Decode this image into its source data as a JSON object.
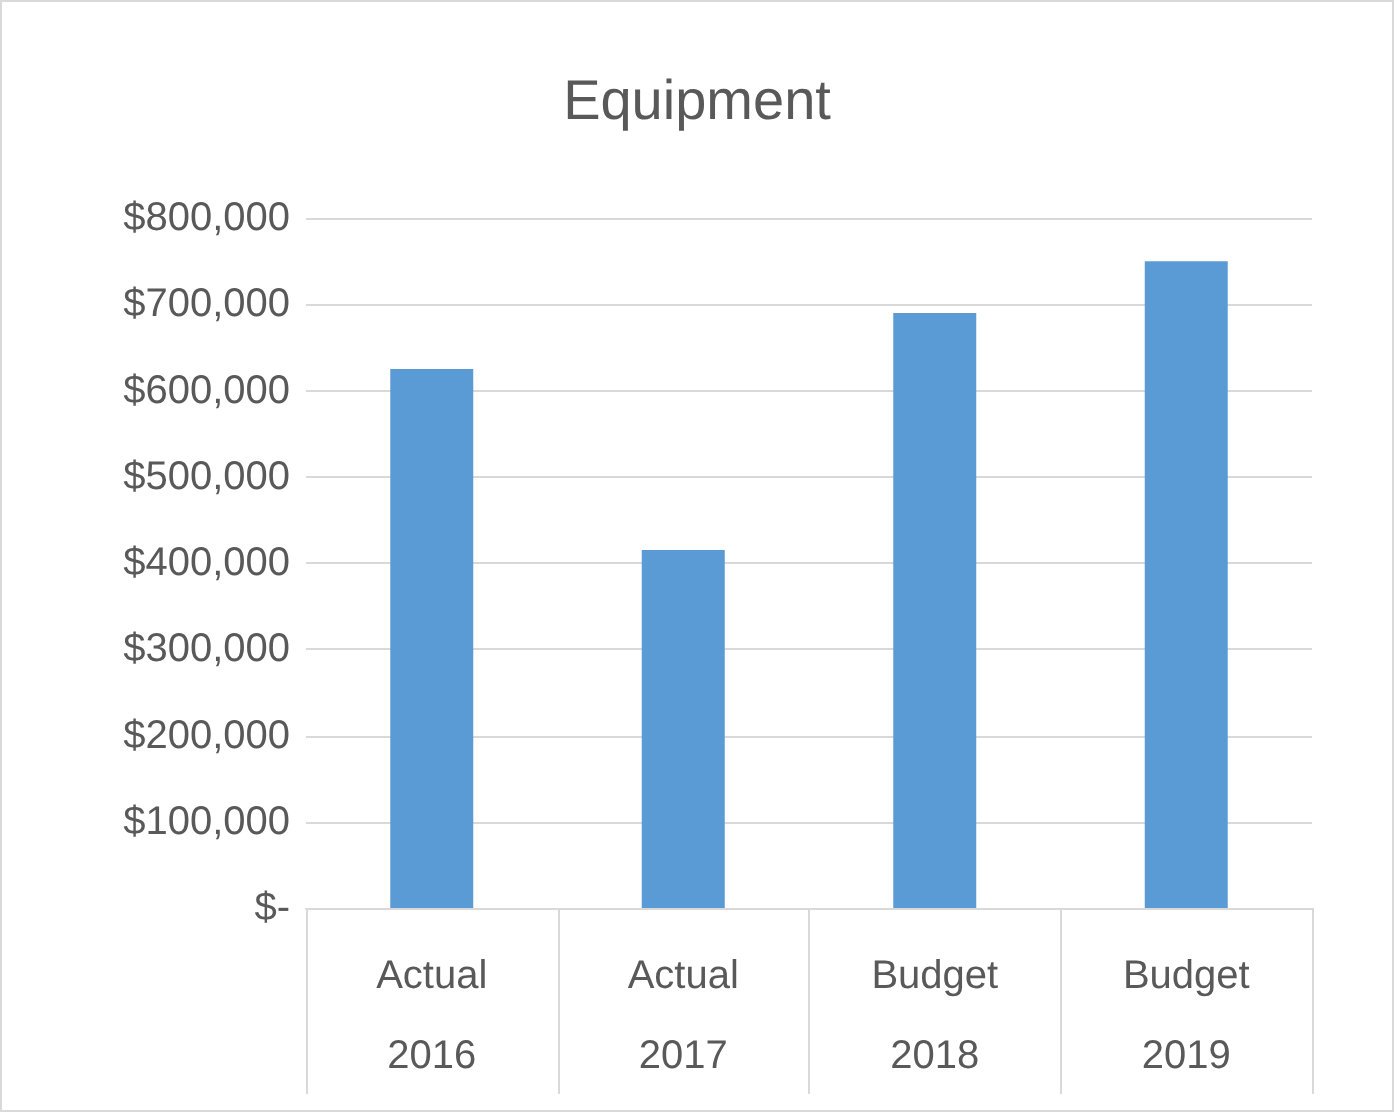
{
  "chart_data": {
    "type": "bar",
    "title": "Equipment",
    "categories": [
      "Actual\n2016",
      "Actual\n2017",
      "Budget\n2018",
      "Budget\n2019"
    ],
    "values": [
      625000,
      415000,
      690000,
      750000
    ],
    "color": "#5b9bd5",
    "ylim": [
      0,
      800000
    ],
    "yticks": [
      {
        "value": 0,
        "label": "$-"
      },
      {
        "value": 100000,
        "label": "$100,000"
      },
      {
        "value": 200000,
        "label": "$200,000"
      },
      {
        "value": 300000,
        "label": "$300,000"
      },
      {
        "value": 400000,
        "label": "$400,000"
      },
      {
        "value": 500000,
        "label": "$500,000"
      },
      {
        "value": 600000,
        "label": "$600,000"
      },
      {
        "value": 700000,
        "label": "$700,000"
      },
      {
        "value": 800000,
        "label": "$800,000"
      }
    ],
    "grid": "y"
  }
}
